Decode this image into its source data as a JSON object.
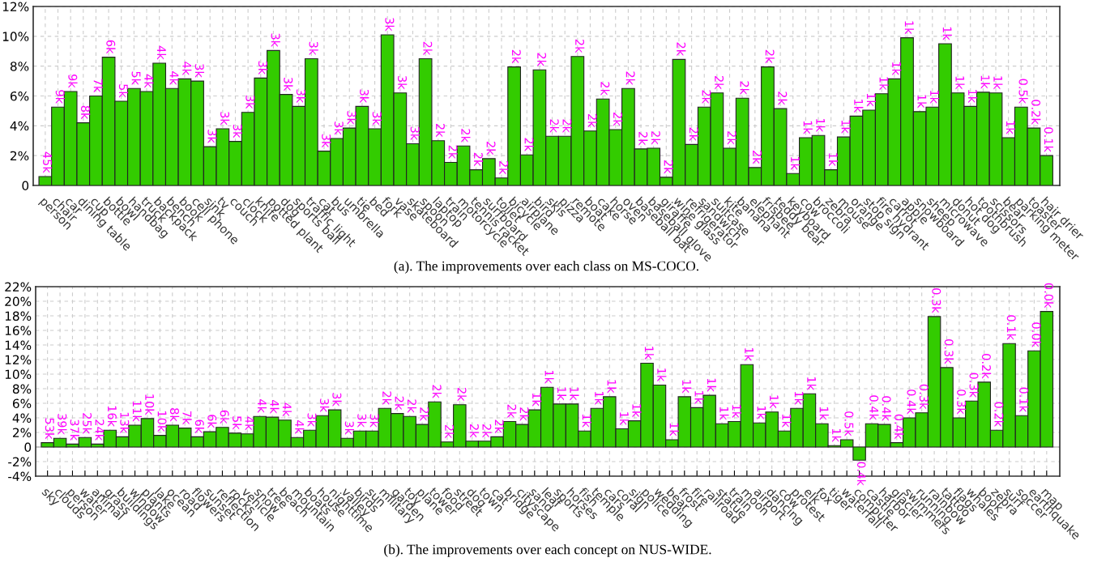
{
  "chart_data": [
    {
      "type": "bar",
      "color": "#33cc00",
      "grid": true,
      "categories": [
        "person",
        "chair",
        "car",
        "dining table",
        "cup",
        "bottle",
        "bowl",
        "handbag",
        "truck",
        "backpack",
        "bench",
        "book",
        "cell phone",
        "sink",
        "tv",
        "couch",
        "clock",
        "knife",
        "potted plant",
        "dog",
        "sports ball",
        "traffic light",
        "cat",
        "bus",
        "umbrella",
        "tie",
        "bed",
        "fork",
        "vase",
        "skateboard",
        "spoon",
        "laptop",
        "train",
        "motorcycle",
        "tennis racket",
        "surfboard",
        "toilet",
        "bicycle",
        "airplane",
        "bird",
        "skis",
        "pizza",
        "remote",
        "boat",
        "cake",
        "horse",
        "oven",
        "baseball bat",
        "baseball glove",
        "giraffe",
        "wine glass",
        "refrigerator",
        "sandwich",
        "suitcase",
        "kite",
        "banana",
        "elephant",
        "frisbee",
        "teddy bear",
        "keyboard",
        "cow",
        "broccoli",
        "zebra",
        "mouse",
        "orange",
        "stop sign",
        "fire hydrant",
        "carrot",
        "apple",
        "snowboard",
        "sheep",
        "microwave",
        "donut",
        "hot dog",
        "toothbrush",
        "scissors",
        "bear",
        "parking meter",
        "toaster",
        "hair drier"
      ],
      "values": [
        0.6,
        5.25,
        6.3,
        4.2,
        6.0,
        8.6,
        5.65,
        6.5,
        6.3,
        8.2,
        6.5,
        7.15,
        7.0,
        2.6,
        3.8,
        2.95,
        4.9,
        7.2,
        9.05,
        6.1,
        5.3,
        8.5,
        2.3,
        3.15,
        3.85,
        5.3,
        3.8,
        10.1,
        6.2,
        2.8,
        8.5,
        3.0,
        1.55,
        2.65,
        1.05,
        1.8,
        0.5,
        7.95,
        2.05,
        7.75,
        3.3,
        3.3,
        8.65,
        3.65,
        5.8,
        3.75,
        6.5,
        2.45,
        2.5,
        0.55,
        8.45,
        2.75,
        5.25,
        6.2,
        2.5,
        5.85,
        1.2,
        7.95,
        5.15,
        0.8,
        3.2,
        3.35,
        1.05,
        3.25,
        4.65,
        5.05,
        6.15,
        7.15,
        9.9,
        4.95,
        5.25,
        9.5,
        6.2,
        5.3,
        6.25,
        6.2,
        3.2,
        5.25,
        3.85,
        2.0
      ],
      "ylim": [
        0,
        12
      ],
      "yticks": [
        0,
        {
          "value": 2,
          "label": "2%"
        },
        {
          "value": 4,
          "label": "4%"
        },
        {
          "value": 6,
          "label": "6%"
        },
        {
          "value": 8,
          "label": "8%"
        },
        {
          "value": 10,
          "label": "10%"
        },
        {
          "value": 12,
          "label": "12%"
        }
      ],
      "annotations": [
        {
          "text": "45k",
          "x": "person",
          "y": 0.6
        },
        {
          "text": "9k",
          "x": "chair",
          "y": 5.25
        },
        {
          "text": "9k",
          "x": "car",
          "y": 6.3
        },
        {
          "text": "8k",
          "x": "dining table",
          "y": 4.2
        },
        {
          "text": "7k",
          "x": "cup",
          "y": 6.0
        },
        {
          "text": "6k",
          "x": "bottle",
          "y": 8.6
        },
        {
          "text": "5k",
          "x": "bowl",
          "y": 5.65
        },
        {
          "text": "5k",
          "x": "handbag",
          "y": 6.5
        },
        {
          "text": "4k",
          "x": "truck",
          "y": 6.3
        },
        {
          "text": "4k",
          "x": "backpack",
          "y": 8.2
        },
        {
          "text": "4k",
          "x": "bench",
          "y": 6.5
        },
        {
          "text": "4k",
          "x": "book",
          "y": 7.15
        },
        {
          "text": "3k",
          "x": "cell phone",
          "y": 7.0
        },
        {
          "text": "3k",
          "x": "sink",
          "y": 2.6
        },
        {
          "text": "3k",
          "x": "tv",
          "y": 3.8
        },
        {
          "text": "3k",
          "x": "couch",
          "y": 2.95
        },
        {
          "text": "3k",
          "x": "clock",
          "y": 4.9
        },
        {
          "text": "3k",
          "x": "knife",
          "y": 7.2
        },
        {
          "text": "3k",
          "x": "potted plant",
          "y": 9.05
        },
        {
          "text": "3k",
          "x": "dog",
          "y": 6.1
        },
        {
          "text": "3k",
          "x": "sports ball",
          "y": 5.3
        },
        {
          "text": "3k",
          "x": "traffic light",
          "y": 8.5
        },
        {
          "text": "3k",
          "x": "cat",
          "y": 2.3
        },
        {
          "text": "3k",
          "x": "bus",
          "y": 3.15
        },
        {
          "text": "3k",
          "x": "umbrella",
          "y": 3.85
        },
        {
          "text": "3k",
          "x": "tie",
          "y": 5.3
        },
        {
          "text": "3k",
          "x": "bed",
          "y": 3.8
        },
        {
          "text": "3k",
          "x": "fork",
          "y": 10.1
        },
        {
          "text": "3k",
          "x": "vase",
          "y": 6.2
        },
        {
          "text": "3k",
          "x": "skateboard",
          "y": 2.8
        },
        {
          "text": "2k",
          "x": "spoon",
          "y": 8.5
        },
        {
          "text": "2k",
          "x": "laptop",
          "y": 3.0
        },
        {
          "text": "2k",
          "x": "train",
          "y": 1.55
        },
        {
          "text": "2k",
          "x": "motorcycle",
          "y": 2.65
        },
        {
          "text": "2k",
          "x": "tennis racket",
          "y": 1.05
        },
        {
          "text": "2k",
          "x": "surfboard",
          "y": 1.8
        },
        {
          "text": "2k",
          "x": "toilet",
          "y": 0.5
        },
        {
          "text": "2k",
          "x": "bicycle",
          "y": 7.95
        },
        {
          "text": "2k",
          "x": "airplane",
          "y": 2.05
        },
        {
          "text": "2k",
          "x": "bird",
          "y": 7.75
        },
        {
          "text": "2k",
          "x": "skis",
          "y": 3.3
        },
        {
          "text": "2k",
          "x": "pizza",
          "y": 3.3
        },
        {
          "text": "2k",
          "x": "remote",
          "y": 8.65
        },
        {
          "text": "2k",
          "x": "boat",
          "y": 3.65
        },
        {
          "text": "2k",
          "x": "cake",
          "y": 5.8
        },
        {
          "text": "2k",
          "x": "horse",
          "y": 3.75
        },
        {
          "text": "2k",
          "x": "oven",
          "y": 6.5
        },
        {
          "text": "2k",
          "x": "baseball bat",
          "y": 2.45
        },
        {
          "text": "2k",
          "x": "baseball glove",
          "y": 2.5
        },
        {
          "text": "2k",
          "x": "giraffe",
          "y": 0.55
        },
        {
          "text": "2k",
          "x": "wine glass",
          "y": 8.45
        },
        {
          "text": "2k",
          "x": "refrigerator",
          "y": 2.75
        },
        {
          "text": "2k",
          "x": "sandwich",
          "y": 5.25
        },
        {
          "text": "2k",
          "x": "suitcase",
          "y": 6.2
        },
        {
          "text": "2k",
          "x": "kite",
          "y": 2.5
        },
        {
          "text": "2k",
          "x": "banana",
          "y": 5.85
        },
        {
          "text": "2k",
          "x": "elephant",
          "y": 1.2
        },
        {
          "text": "2k",
          "x": "frisbee",
          "y": 7.95
        },
        {
          "text": "2k",
          "x": "teddy bear",
          "y": 5.15
        },
        {
          "text": "1k",
          "x": "keyboard",
          "y": 0.8
        },
        {
          "text": "1k",
          "x": "cow",
          "y": 3.2
        },
        {
          "text": "1k",
          "x": "broccoli",
          "y": 3.35
        },
        {
          "text": "1k",
          "x": "zebra",
          "y": 1.05
        },
        {
          "text": "1k",
          "x": "mouse",
          "y": 3.25
        },
        {
          "text": "1k",
          "x": "orange",
          "y": 4.65
        },
        {
          "text": "1k",
          "x": "stop sign",
          "y": 5.05
        },
        {
          "text": "1k",
          "x": "fire hydrant",
          "y": 6.15
        },
        {
          "text": "1k",
          "x": "carrot",
          "y": 7.15
        },
        {
          "text": "1k",
          "x": "apple",
          "y": 9.9
        },
        {
          "text": "1k",
          "x": "snowboard",
          "y": 4.95
        },
        {
          "text": "1k",
          "x": "sheep",
          "y": 5.25
        },
        {
          "text": "1k",
          "x": "microwave",
          "y": 9.5
        },
        {
          "text": "1k",
          "x": "donut",
          "y": 6.2
        },
        {
          "text": "1k",
          "x": "hot dog",
          "y": 5.3
        },
        {
          "text": "1k",
          "x": "toothbrush",
          "y": 6.25
        },
        {
          "text": "1k",
          "x": "scissors",
          "y": 6.2
        },
        {
          "text": "1k",
          "x": "bear",
          "y": 3.2
        },
        {
          "text": "0.5k",
          "x": "parking meter",
          "y": 5.25
        },
        {
          "text": "0.2k",
          "x": "toaster",
          "y": 3.85
        },
        {
          "text": "0.1k",
          "x": "hair drier",
          "y": 2.0
        },
        "(a). The improvements over each class on MS-COCO."
      ]
    },
    {
      "type": "bar",
      "color": "#33cc00",
      "grid": true,
      "categories": [
        "sky",
        "clouds",
        "person",
        "water",
        "animal",
        "grass",
        "buildings",
        "window",
        "plants",
        "lake",
        "ocean",
        "road",
        "flowers",
        "sunset",
        "reflection",
        "rocks",
        "vehicle",
        "snow",
        "tree",
        "beach",
        "mountain",
        "boats",
        "house",
        "nighttime",
        "valley",
        "birds",
        "sun",
        "military",
        "garden",
        "toy",
        "plane",
        "tower",
        "food",
        "street",
        "dog",
        "town",
        "cat",
        "bridge",
        "cityscape",
        "sand",
        "leaf",
        "sports",
        "horses",
        "fish",
        "temple",
        "cars",
        "coral",
        "sign",
        "police",
        "wedding",
        "bear",
        "frost",
        "fire",
        "railroad",
        "statue",
        "train",
        "moon",
        "airport",
        "dancing",
        "cow",
        "protest",
        "elk",
        "fox",
        "tiger",
        "waterfall",
        "computer",
        "castle",
        "harbor",
        "glacier",
        "swimmers",
        "running",
        "rainbow",
        "tattoo",
        "flags",
        "whales",
        "book",
        "zebra",
        "surf",
        "soccer",
        "earthquake",
        "map"
      ],
      "values": [
        0.6,
        1.2,
        0.4,
        1.3,
        0.4,
        2.3,
        1.4,
        3.0,
        3.9,
        1.6,
        3.0,
        2.6,
        1.4,
        2.1,
        2.7,
        1.9,
        1.8,
        4.2,
        4.1,
        3.7,
        1.3,
        2.3,
        4.3,
        5.1,
        1.2,
        2.2,
        2.2,
        5.3,
        4.6,
        4.2,
        3.1,
        6.2,
        0.7,
        5.8,
        0.8,
        0.8,
        1.4,
        3.5,
        3.1,
        5.1,
        8.2,
        5.9,
        5.9,
        2.2,
        5.3,
        6.9,
        2.5,
        3.6,
        11.5,
        8.5,
        1.0,
        6.9,
        5.4,
        7.1,
        3.2,
        3.5,
        11.3,
        3.3,
        4.8,
        2.2,
        5.3,
        7.3,
        3.2,
        0.2,
        1.0,
        -1.8,
        3.2,
        3.1,
        0.6,
        4.0,
        4.7,
        17.9,
        10.9,
        4.0,
        6.3,
        8.9,
        2.3,
        14.2,
        4.3,
        13.2,
        18.6
      ],
      "ylim": [
        -4,
        22
      ],
      "yticks": [
        {
          "value": -4,
          "label": "-4%"
        },
        {
          "value": -2,
          "label": "-2%"
        },
        0,
        {
          "value": 2,
          "label": "2%"
        },
        {
          "value": 4,
          "label": "4%"
        },
        {
          "value": 6,
          "label": "6%"
        },
        {
          "value": 8,
          "label": "8%"
        },
        {
          "value": 10,
          "label": "10%"
        },
        {
          "value": 12,
          "label": "12%"
        },
        {
          "value": 14,
          "label": "14%"
        },
        {
          "value": 16,
          "label": "16%"
        },
        {
          "value": 18,
          "label": "18%"
        },
        {
          "value": 20,
          "label": "20%"
        },
        {
          "value": 22,
          "label": "22%"
        }
      ],
      "annotations": [
        {
          "text": "53k",
          "x": "sky",
          "y": 0.6
        },
        {
          "text": "39k",
          "x": "clouds",
          "y": 1.2
        },
        {
          "text": "37k",
          "x": "person",
          "y": 0.4
        },
        {
          "text": "25k",
          "x": "water",
          "y": 1.3
        },
        {
          "text": "24k",
          "x": "animal",
          "y": 0.4
        },
        {
          "text": "16k",
          "x": "grass",
          "y": 2.3
        },
        {
          "text": "13k",
          "x": "buildings",
          "y": 1.4
        },
        {
          "text": "11k",
          "x": "window",
          "y": 3.0
        },
        {
          "text": "10k",
          "x": "plants",
          "y": 3.9
        },
        {
          "text": "10k",
          "x": "lake",
          "y": 1.6
        },
        {
          "text": "8k",
          "x": "ocean",
          "y": 3.0
        },
        {
          "text": "7k",
          "x": "road",
          "y": 2.6
        },
        {
          "text": "6k",
          "x": "flowers",
          "y": 1.4
        },
        {
          "text": "6k",
          "x": "sunset",
          "y": 2.1
        },
        {
          "text": "6k",
          "x": "reflection",
          "y": 2.7
        },
        {
          "text": "5k",
          "x": "rocks",
          "y": 1.9
        },
        {
          "text": "4k",
          "x": "vehicle",
          "y": 1.8
        },
        {
          "text": "4k",
          "x": "snow",
          "y": 4.2
        },
        {
          "text": "4k",
          "x": "tree",
          "y": 4.1
        },
        {
          "text": "4k",
          "x": "beach",
          "y": 3.7
        },
        {
          "text": "4k",
          "x": "mountain",
          "y": 1.3
        },
        {
          "text": "3k",
          "x": "boats",
          "y": 2.3
        },
        {
          "text": "3k",
          "x": "house",
          "y": 4.3
        },
        {
          "text": "3k",
          "x": "nighttime",
          "y": 5.1
        },
        {
          "text": "3k",
          "x": "valley",
          "y": 1.2
        },
        {
          "text": "3k",
          "x": "birds",
          "y": 2.2
        },
        {
          "text": "3k",
          "x": "sun",
          "y": 2.2
        },
        {
          "text": "2k",
          "x": "military",
          "y": 5.3
        },
        {
          "text": "2k",
          "x": "garden",
          "y": 4.6
        },
        {
          "text": "2k",
          "x": "toy",
          "y": 4.2
        },
        {
          "text": "2k",
          "x": "plane",
          "y": 3.1
        },
        {
          "text": "2k",
          "x": "tower",
          "y": 6.2
        },
        {
          "text": "2k",
          "x": "food",
          "y": 0.7
        },
        {
          "text": "2k",
          "x": "street",
          "y": 5.8
        },
        {
          "text": "2k",
          "x": "dog",
          "y": 0.8
        },
        {
          "text": "2k",
          "x": "town",
          "y": 0.8
        },
        {
          "text": "2k",
          "x": "cat",
          "y": 1.4
        },
        {
          "text": "2k",
          "x": "bridge",
          "y": 3.5
        },
        {
          "text": "2k",
          "x": "cityscape",
          "y": 3.1
        },
        {
          "text": "1k",
          "x": "sand",
          "y": 5.1
        },
        {
          "text": "1k",
          "x": "leaf",
          "y": 8.2
        },
        {
          "text": "1k",
          "x": "sports",
          "y": 5.9
        },
        {
          "text": "1k",
          "x": "horses",
          "y": 5.9
        },
        {
          "text": "1k",
          "x": "fish",
          "y": 2.2
        },
        {
          "text": "1k",
          "x": "temple",
          "y": 5.3
        },
        {
          "text": "1k",
          "x": "cars",
          "y": 6.9
        },
        {
          "text": "1k",
          "x": "coral",
          "y": 2.5
        },
        {
          "text": "1k",
          "x": "sign",
          "y": 3.6
        },
        {
          "text": "1k",
          "x": "police",
          "y": 11.5
        },
        {
          "text": "1k",
          "x": "wedding",
          "y": 8.5
        },
        {
          "text": "1k",
          "x": "bear",
          "y": 1.0
        },
        {
          "text": "1k",
          "x": "frost",
          "y": 6.9
        },
        {
          "text": "1k",
          "x": "fire",
          "y": 5.4
        },
        {
          "text": "1k",
          "x": "railroad",
          "y": 7.1
        },
        {
          "text": "1k",
          "x": "statue",
          "y": 3.2
        },
        {
          "text": "1k",
          "x": "train",
          "y": 3.5
        },
        {
          "text": "1k",
          "x": "moon",
          "y": 11.3
        },
        {
          "text": "1k",
          "x": "airport",
          "y": 3.3
        },
        {
          "text": "1k",
          "x": "dancing",
          "y": 4.8
        },
        {
          "text": "1k",
          "x": "cow",
          "y": 2.2
        },
        {
          "text": "1k",
          "x": "protest",
          "y": 5.3
        },
        {
          "text": "1k",
          "x": "elk",
          "y": 7.3
        },
        {
          "text": "1k",
          "x": "fox",
          "y": 3.2
        },
        {
          "text": "1k",
          "x": "tiger",
          "y": 0.2
        },
        {
          "text": "0.5k",
          "x": "waterfall",
          "y": 1.0
        },
        {
          "text": "0.4k",
          "x": "computer",
          "y": -1.8
        },
        {
          "text": "0.4k",
          "x": "castle",
          "y": 3.2
        },
        {
          "text": "0.4k",
          "x": "harbor",
          "y": 3.1
        },
        {
          "text": "0.4k",
          "x": "glacier",
          "y": 0.6
        },
        {
          "text": "0.4k",
          "x": "swimmers",
          "y": 4.0
        },
        {
          "text": "0.3k",
          "x": "running",
          "y": 4.7
        },
        {
          "text": "0.3k",
          "x": "rainbow",
          "y": 17.9
        },
        {
          "text": "0.3k",
          "x": "tattoo",
          "y": 10.9
        },
        {
          "text": "0.3k",
          "x": "flags",
          "y": 4.0
        },
        {
          "text": "0.3k",
          "x": "whales",
          "y": 6.3
        },
        {
          "text": "0.2k",
          "x": "book",
          "y": 8.9
        },
        {
          "text": "0.2k",
          "x": "zebra",
          "y": 2.3
        },
        {
          "text": "0.1k",
          "x": "surf",
          "y": 14.2
        },
        {
          "text": "0.1k",
          "x": "soccer",
          "y": 4.3
        },
        {
          "text": "0.0k",
          "x": "earthquake",
          "y": 13.2
        },
        {
          "text": "0.0k",
          "x": "map",
          "y": 18.6
        },
        "(b). The improvements over each concept on NUS-WIDE."
      ]
    }
  ]
}
